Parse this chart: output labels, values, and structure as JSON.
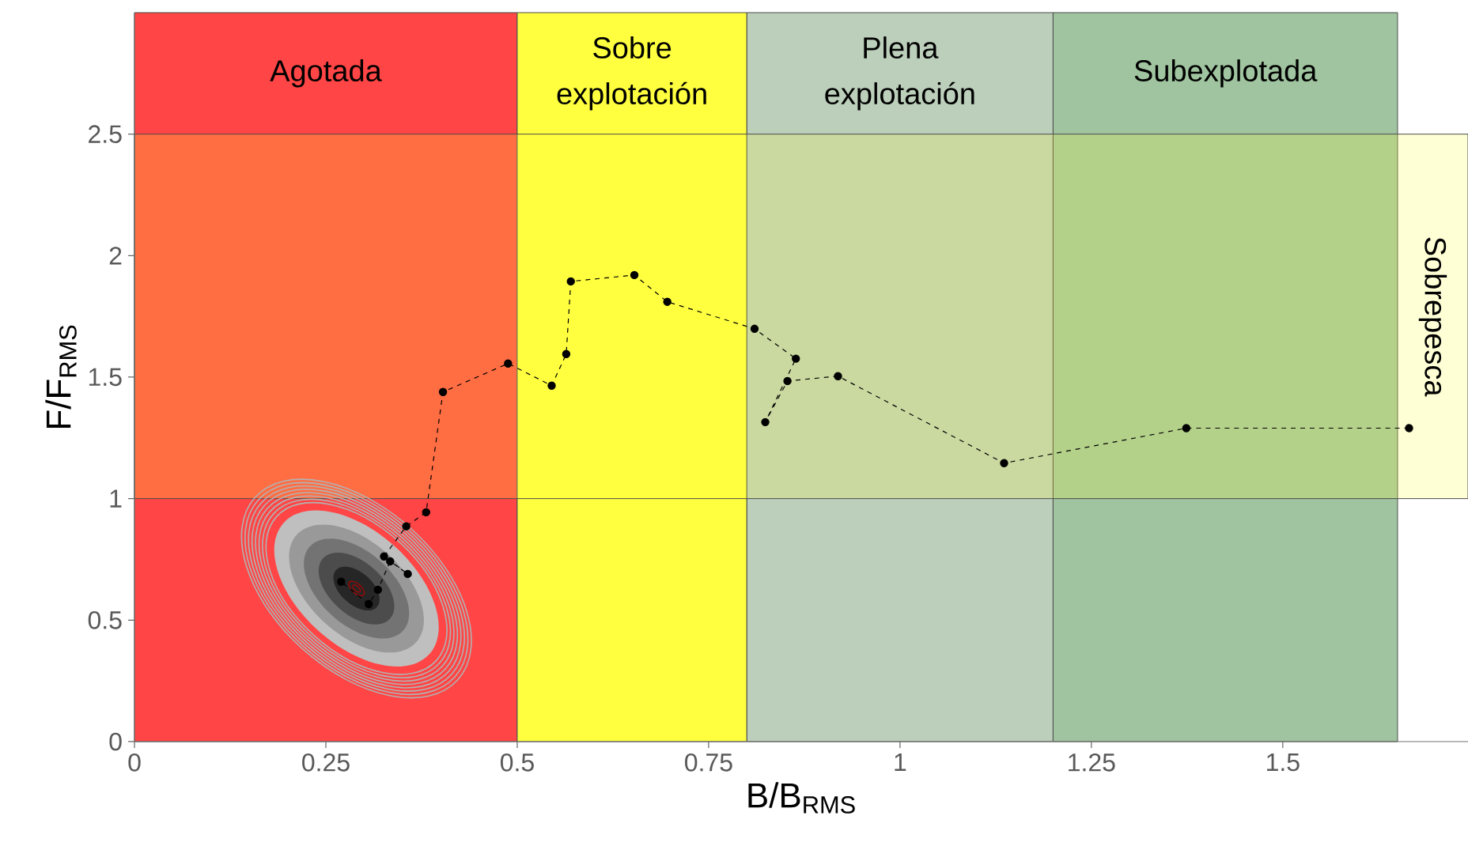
{
  "chart_data": {
    "type": "line",
    "xlabel": "B/B$_{RMS}$",
    "ylabel": "F/F$_{RMS}$",
    "xlim": [
      0,
      1.742
    ],
    "ylim": [
      0,
      3
    ],
    "xticks": [
      0,
      0.25,
      0.5,
      0.75,
      1,
      1.25,
      1.5
    ],
    "yticks": [
      0,
      0.5,
      1,
      1.5,
      2,
      2.5
    ],
    "marker": "circle",
    "line_style": "dashed",
    "grid": false,
    "bands": [
      {
        "axis": "x",
        "from": 0,
        "to": 0.5,
        "label": "Agotada",
        "color": "#ff4545"
      },
      {
        "axis": "x",
        "from": 0.5,
        "to": 0.8,
        "label": "Sobre explotación",
        "color": "#ffff40"
      },
      {
        "axis": "x",
        "from": 0.8,
        "to": 1.2,
        "label": "Plena explotación",
        "color": "#bccfbb"
      },
      {
        "axis": "x",
        "from": 1.2,
        "to": 1.65,
        "label": "Subexplotada",
        "color": "#9fc49f"
      },
      {
        "axis": "y",
        "from": 1,
        "to": 2.5,
        "label": "Sobrepesca",
        "color": "#ffff40"
      }
    ],
    "series": [
      {
        "color": "#000000",
        "x": [
          1.665,
          1.374,
          1.136,
          0.919,
          0.853,
          0.824,
          0.864,
          0.81,
          0.696,
          0.653,
          0.57,
          0.564,
          0.545,
          0.488,
          0.403,
          0.381,
          0.355,
          0.326,
          0.357,
          0.334,
          0.318,
          0.306,
          0.27
        ],
        "values": [
          1.29,
          1.29,
          1.146,
          1.504,
          1.484,
          1.315,
          1.576,
          1.699,
          1.81,
          1.92,
          1.894,
          1.595,
          1.465,
          1.556,
          1.439,
          0.944,
          0.886,
          0.762,
          0.69,
          0.742,
          0.625,
          0.566,
          0.658
        ]
      }
    ]
  }
}
